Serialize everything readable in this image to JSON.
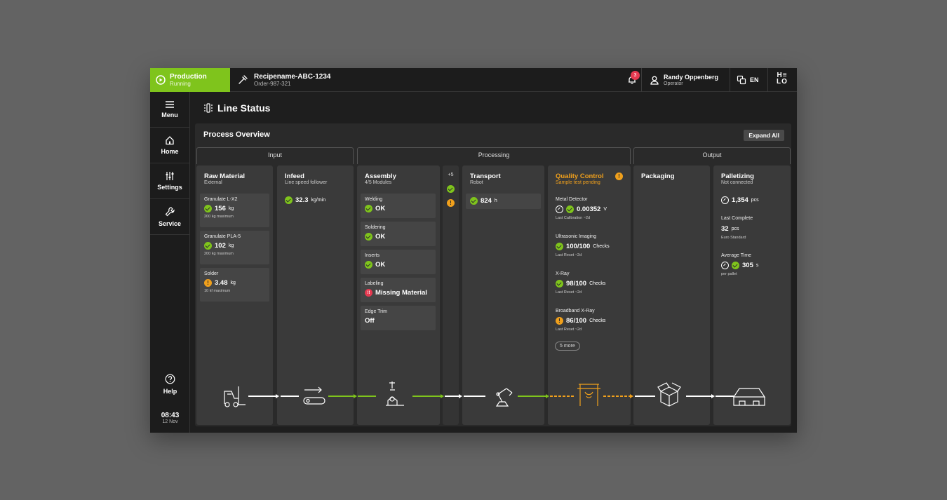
{
  "topbar": {
    "production_title": "Production",
    "production_status": "Running",
    "recipe_name": "Recipename-ABC-1234",
    "order": "Order-987-321",
    "notification_count": "3",
    "user_name": "Randy Oppenberg",
    "user_role": "Operator",
    "language": "EN",
    "logo": "HELO"
  },
  "sidebar": {
    "items": [
      {
        "label": "Menu",
        "icon": "menu-icon"
      },
      {
        "label": "Home",
        "icon": "home-icon"
      },
      {
        "label": "Settings",
        "icon": "sliders-icon"
      },
      {
        "label": "Service",
        "icon": "wrench-icon"
      }
    ],
    "help": "Help",
    "time": "08:43",
    "date": "12 Nov"
  },
  "page": {
    "title": "Line Status"
  },
  "overview": {
    "title": "Process Overview",
    "expand_label": "Expand All",
    "groups": [
      "Input",
      "Processing",
      "Output"
    ]
  },
  "columns": {
    "raw": {
      "title": "Raw Material",
      "subtitle": "External",
      "cards": [
        {
          "label": "Granulate L-X2",
          "value": "156",
          "unit": "kg",
          "note": "200 kg maximum",
          "status": "ok"
        },
        {
          "label": "Granulate PLA-5",
          "value": "102",
          "unit": "kg",
          "note": "200 kg maximum",
          "status": "ok"
        },
        {
          "label": "Solder",
          "value": "3.48",
          "unit": "kg",
          "note": "10 kf maximum",
          "status": "warning"
        }
      ]
    },
    "infeed": {
      "title": "Infeed",
      "subtitle": "Line speed follower",
      "value": "32.3",
      "unit": "kg/min",
      "status": "ok"
    },
    "assembly": {
      "title": "Assembly",
      "subtitle": "4/5 Modules",
      "cards": [
        {
          "label": "Welding",
          "value": "OK",
          "status": "ok"
        },
        {
          "label": "Soldering",
          "value": "OK",
          "status": "ok"
        },
        {
          "label": "Inserts",
          "value": "OK",
          "status": "ok"
        },
        {
          "label": "Labeling",
          "value": "Missing Material",
          "status": "error"
        },
        {
          "label": "Edge Trim",
          "value": "Off",
          "status": "off"
        }
      ]
    },
    "extra": {
      "label": "+5"
    },
    "transport": {
      "title": "Transport",
      "subtitle": "Robot",
      "value": "824",
      "unit": "h",
      "status": "ok"
    },
    "quality": {
      "title": "Quality Control",
      "subtitle": "Sample test pending",
      "items": [
        {
          "label": "Metal Detector",
          "value": "0.00352",
          "unit": "V",
          "note": "Last Calibration ~2d",
          "status": "ok"
        },
        {
          "label": "Ultrasonic Imaging",
          "value": "100/100",
          "unit": "Checks",
          "note": "Last Reset ~2d",
          "status": "ok"
        },
        {
          "label": "X-Ray",
          "value": "98/100",
          "unit": "Checks",
          "note": "Last Reset ~2d",
          "status": "ok"
        },
        {
          "label": "Broadband X-Ray",
          "value": "86/100",
          "unit": "Checks",
          "note": "Last Reset ~2d",
          "status": "warning"
        }
      ],
      "more": "5 more"
    },
    "packaging": {
      "title": "Packaging"
    },
    "palletizing": {
      "title": "Palletizing",
      "subtitle": "Not connected",
      "count_value": "1,354",
      "count_unit": "pcs",
      "last_label": "Last Complete",
      "last_value": "32",
      "last_unit": "pcs",
      "last_note": "Euro Standard",
      "avg_label": "Average Time",
      "avg_value": "305",
      "avg_unit": "s",
      "avg_note": "per pallet"
    }
  },
  "colors": {
    "accent": "#7fc41c",
    "warning": "#f0a01c",
    "error": "#e53950"
  }
}
